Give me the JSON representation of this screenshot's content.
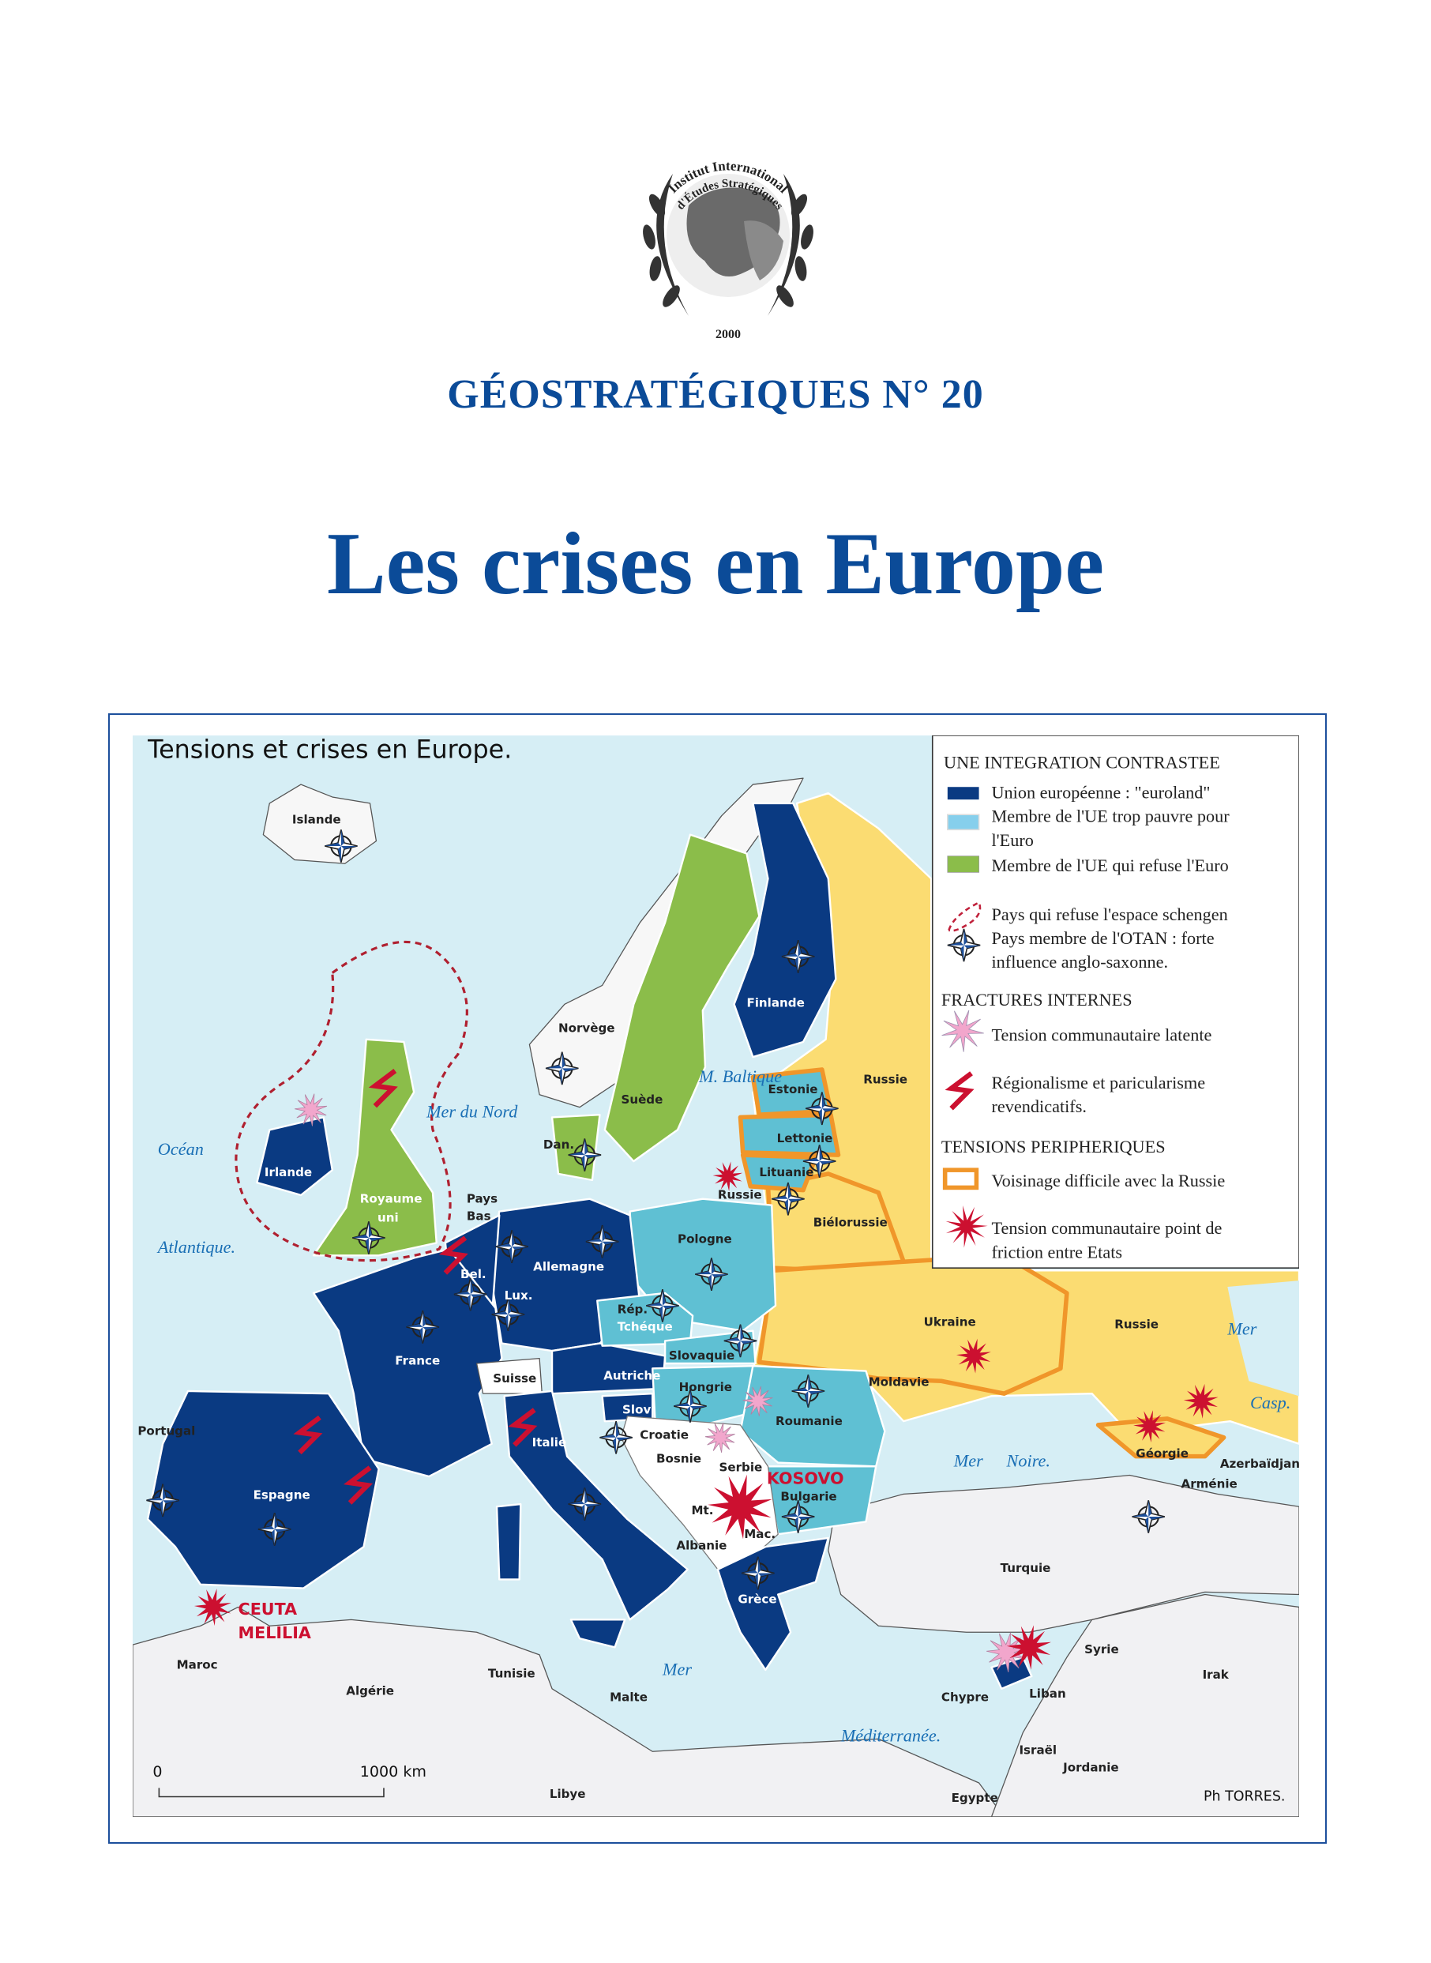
{
  "logo": {
    "arc_top": "Institut International",
    "arc_inner": "d'Études Stratégiques",
    "year": "2000"
  },
  "journal_title": "GÉOSTRATÉGIQUES N° 20",
  "headline": "Les crises en Europe",
  "map": {
    "title": "Tensions et crises en Europe.",
    "credit": "Ph TORRES.",
    "scale": {
      "start": "0",
      "end": "1000 km"
    },
    "countries": [
      "Islande",
      "Norvège",
      "Suède",
      "Finlande",
      "Russie",
      "Estonie",
      "Lettonie",
      "Lituanie",
      "Russie",
      "Biélorussie",
      "Dan.",
      "Irlande",
      "Royaume",
      "uni",
      "Pays",
      "Bas",
      "Bel.",
      "Lux.",
      "Allemagne",
      "Pologne",
      "Rép.",
      "Tchéque",
      "Slovaquie",
      "France",
      "Suisse",
      "Autriche",
      "Hongrie",
      "Slov",
      "Croatie",
      "Roumanie",
      "Moldavie",
      "Ukraine",
      "Russie",
      "Bosnie",
      "Serbie",
      "Bulgarie",
      "Mt.",
      "Mac.",
      "Albanie",
      "Italie",
      "Espagne",
      "Portugal",
      "Grèce",
      "Turquie",
      "Géorgie",
      "Azerbaïdjan",
      "Arménie",
      "Syrie",
      "Irak",
      "Chypre",
      "Liban",
      "Israël",
      "Jordanie",
      "Egypte",
      "Libye",
      "Malte",
      "Tunisie",
      "Algérie",
      "Maroc"
    ],
    "seas": [
      "Océan",
      "Atlantique.",
      "Mer du Nord",
      "M. Baltique",
      "Mer",
      "Noire.",
      "Mer",
      "Méditerranée.",
      "Mer",
      "Casp."
    ],
    "hotspots": [
      "KOSOVO",
      "CEUTA",
      "MELILIA"
    ]
  },
  "legend": {
    "sections": [
      {
        "heading": "UNE INTEGRATION CONTRASTEE",
        "items": [
          {
            "icon": "dark-blue-swatch",
            "lines": [
              "Union européenne : \"euroland\""
            ]
          },
          {
            "icon": "light-blue-swatch",
            "lines": [
              "Membre de l'UE trop pauvre pour",
              "l'Euro"
            ]
          },
          {
            "icon": "green-swatch",
            "lines": [
              "Membre de l'UE qui refuse l'Euro"
            ]
          },
          {
            "icon": "red-dashed-outline",
            "lines": [
              "Pays qui refuse l'espace schengen"
            ]
          },
          {
            "icon": "nato-compass-icon",
            "lines": [
              "Pays membre de l'OTAN : forte",
              "influence anglo-saxonne."
            ]
          }
        ]
      },
      {
        "heading": "FRACTURES INTERNES",
        "items": [
          {
            "icon": "pink-starburst-icon",
            "lines": [
              "Tension communautaire latente"
            ]
          },
          {
            "icon": "red-lightning-icon",
            "lines": [
              "Régionalisme et paricularisme",
              "revendicatifs."
            ]
          }
        ]
      },
      {
        "heading": "TENSIONS PERIPHERIQUES",
        "items": [
          {
            "icon": "orange-outline-swatch",
            "lines": [
              "Voisinage difficile avec la Russie"
            ]
          },
          {
            "icon": "red-starburst-icon",
            "lines": [
              "Tension communautaire point de",
              "friction entre Etats"
            ]
          }
        ]
      }
    ]
  },
  "colors": {
    "euroland": "#0a3a82",
    "eu_non_euro_poor": "#5fc0d3",
    "eu_refuse_euro": "#8bbd4a",
    "russia_neighbourhood": "#fbdc72",
    "orange_border": "#f0962a",
    "sea": "#d6eef5",
    "other_land": "#f1f1f3",
    "tension_red": "#cc1030",
    "tension_pink": "#f2a6cc",
    "title_blue": "#0b4b98"
  }
}
